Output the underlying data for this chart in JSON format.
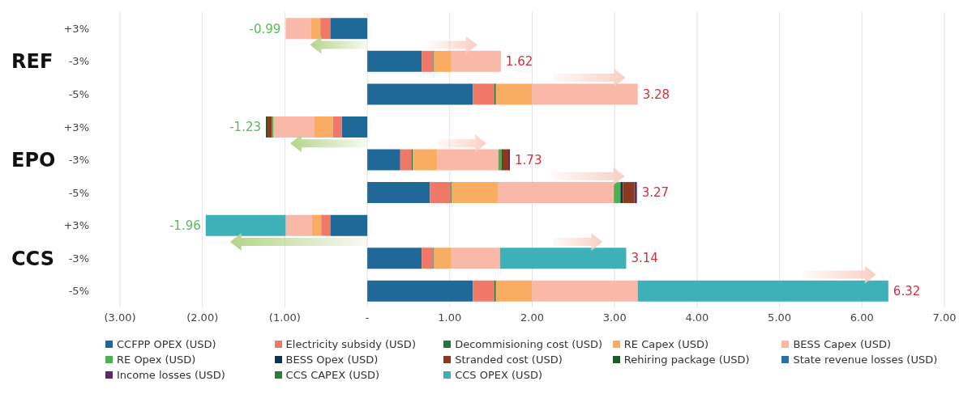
{
  "chart_data": {
    "type": "bar",
    "orientation": "horizontal",
    "stacked": true,
    "categories": [
      "+3%",
      "-3%",
      "-5%",
      "+3%",
      "-3%",
      "-5%",
      "+3%",
      "-3%",
      "-5%"
    ],
    "series": [
      {
        "name": "CCFPP OPEX (USD)",
        "color": "#1f6898",
        "values": [
          -0.45,
          0.66,
          1.28,
          -0.31,
          0.4,
          0.76,
          -0.45,
          0.66,
          1.28
        ]
      },
      {
        "name": "Electricity subsidy (USD)",
        "color": "#f07868",
        "values": [
          -0.12,
          0.14,
          0.26,
          -0.11,
          0.14,
          0.25,
          -0.11,
          0.14,
          0.26
        ]
      },
      {
        "name": "Decommisioning cost (USD)",
        "color": "#1e7a3a",
        "values": [
          null,
          0.01,
          0.02,
          null,
          0.01,
          0.01,
          null,
          0.01,
          0.02
        ]
      },
      {
        "name": "RE Capex (USD)",
        "color": "#f9ad62",
        "values": [
          -0.11,
          0.21,
          0.44,
          -0.22,
          0.3,
          0.57,
          -0.11,
          0.21,
          0.44
        ]
      },
      {
        "name": "BESS Capex (USD)",
        "color": "#f9b8a8",
        "values": [
          -0.31,
          0.6,
          1.28,
          -0.5,
          0.74,
          1.4,
          -0.32,
          0.59,
          1.28
        ]
      },
      {
        "name": "RE Opex (USD)",
        "color": "#4caf50",
        "values": [
          null,
          null,
          null,
          -0.02,
          0.04,
          0.08,
          null,
          null,
          null
        ]
      },
      {
        "name": "BESS Opex (USD)",
        "color": "#0d3550",
        "values": [
          null,
          null,
          null,
          null,
          0.01,
          0.03,
          null,
          null,
          null
        ]
      },
      {
        "name": "Stranded cost (USD)",
        "color": "#8b3a1e",
        "values": [
          null,
          null,
          null,
          -0.05,
          0.07,
          0.14,
          null,
          null,
          null
        ]
      },
      {
        "name": "Rehiring package (USD)",
        "color": "#1e5a2a",
        "values": [
          null,
          null,
          null,
          -0.02,
          null,
          null,
          null,
          null,
          null
        ]
      },
      {
        "name": "State revenue losses (USD)",
        "color": "#2a6fa8",
        "values": [
          null,
          null,
          null,
          null,
          null,
          null,
          null,
          null,
          null
        ]
      },
      {
        "name": "Income losses (USD)",
        "color": "#5a2a6a",
        "values": [
          null,
          null,
          null,
          null,
          0.02,
          0.03,
          null,
          null,
          null
        ]
      },
      {
        "name": "CCS CAPEX (USD)",
        "color": "#2e7d32",
        "values": [
          null,
          null,
          null,
          null,
          null,
          null,
          null,
          null,
          null
        ]
      },
      {
        "name": "CCS OPEX (USD)",
        "color": "#3eb1b8",
        "values": [
          null,
          null,
          null,
          null,
          null,
          null,
          -0.97,
          1.53,
          3.04
        ]
      }
    ],
    "totals": [
      "-0.99",
      "1.62",
      "3.28",
      "-1.23",
      "1.73",
      "3.27",
      "-1.96",
      "3.14",
      "6.32"
    ],
    "annotations": [
      "REF",
      "EPO",
      "CCS"
    ],
    "xlim": [
      -3,
      7
    ],
    "xticks": [
      {
        "value": -3,
        "label": "(3.00)"
      },
      {
        "value": -2,
        "label": "(2.00)"
      },
      {
        "value": -1,
        "label": "(1.00)"
      },
      {
        "value": 0,
        "label": "-"
      },
      {
        "value": 1,
        "label": "1.00"
      },
      {
        "value": 2,
        "label": "2.00"
      },
      {
        "value": 3,
        "label": "3.00"
      },
      {
        "value": 4,
        "label": "4.00"
      },
      {
        "value": 5,
        "label": "5.00"
      },
      {
        "value": 6,
        "label": "6.00"
      },
      {
        "value": 7,
        "label": "7.00"
      }
    ],
    "grid": "x",
    "legend": "bottom"
  }
}
